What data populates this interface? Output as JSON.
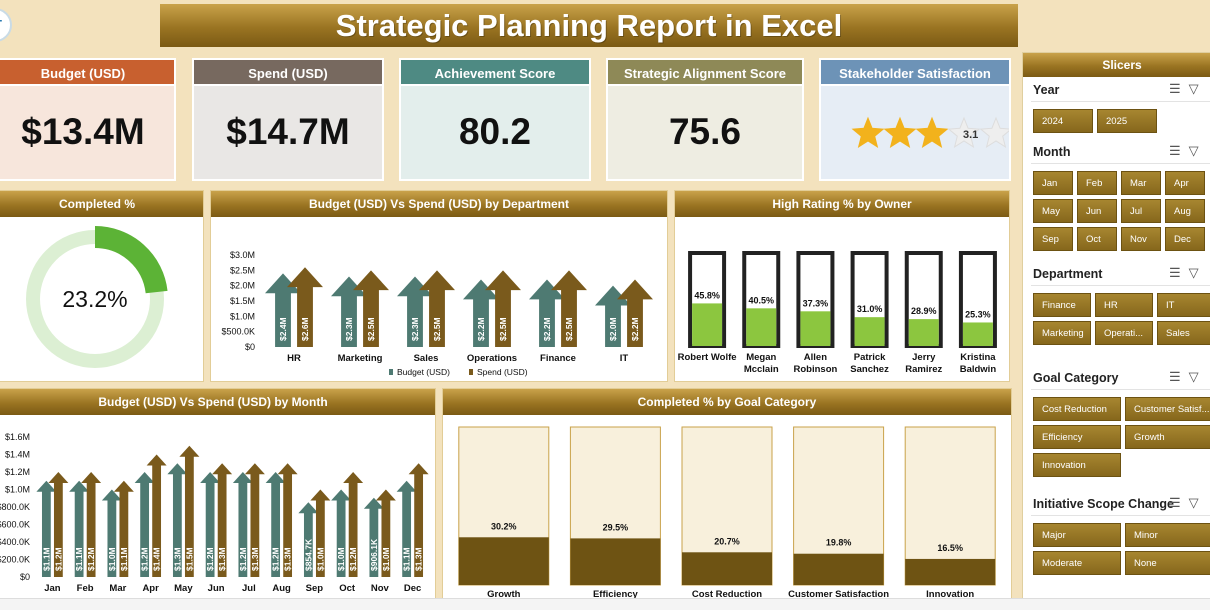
{
  "header": {
    "title": "Strategic Planning Report in Excel",
    "logo_text": "T"
  },
  "kpis": [
    {
      "label": "Budget (USD)",
      "value": "$13.4M",
      "head_color": "#c8602f",
      "body_color": "#f7e6dc"
    },
    {
      "label": "Spend (USD)",
      "value": "$14.7M",
      "head_color": "#77695f",
      "body_color": "#e9e7e5"
    },
    {
      "label": "Achievement Score",
      "value": "80.2",
      "head_color": "#4e8a83",
      "body_color": "#e3eeec"
    },
    {
      "label": "Strategic Alignment Score",
      "value": "75.6",
      "head_color": "#8e8957",
      "body_color": "#eeede2"
    },
    {
      "label": "Stakeholder Satisfaction",
      "value": "",
      "head_color": "#6d93b7",
      "body_color": "#e6edf5"
    }
  ],
  "stakeholder_rating": {
    "value": "3.1",
    "stars_filled": 3,
    "stars_total": 5,
    "star_color": "#f2b21c"
  },
  "completed_panel": {
    "title": "Completed %",
    "value_text": "23.2%",
    "fraction": 0.232
  },
  "chart_data": [
    {
      "type": "bar",
      "title": "Budget (USD) Vs Spend (USD) by Department",
      "categories": [
        "HR",
        "Marketing",
        "Sales",
        "Operations",
        "Finance",
        "IT"
      ],
      "series": [
        {
          "name": "Budget (USD)",
          "values": [
            2.4,
            2.3,
            2.3,
            2.2,
            2.2,
            2.0
          ],
          "labels": [
            "$2.4M",
            "$2.3M",
            "$2.3M",
            "$2.2M",
            "$2.2M",
            "$2.0M"
          ],
          "color": "#4e7a72"
        },
        {
          "name": "Spend (USD)",
          "values": [
            2.6,
            2.5,
            2.5,
            2.5,
            2.5,
            2.2
          ],
          "labels": [
            "$2.6M",
            "$2.5M",
            "$2.5M",
            "$2.5M",
            "$2.5M",
            "$2.2M"
          ],
          "color": "#7a5a1c"
        }
      ],
      "yticks": [
        "$0",
        "$500.0K",
        "$1.0M",
        "$1.5M",
        "$2.0M",
        "$2.5M",
        "$3.0M"
      ],
      "ylim": [
        0,
        3.0
      ],
      "legend": "bottom"
    },
    {
      "type": "bar",
      "title": "High Rating % by Owner",
      "categories": [
        "Robert Wolfe",
        "Megan Mcclain",
        "Allen Robinson",
        "Patrick Sanchez",
        "Jerry Ramirez",
        "Kristina Baldwin"
      ],
      "category_lines": [
        [
          "Robert Wolfe"
        ],
        [
          "Megan",
          "Mcclain"
        ],
        [
          "Allen",
          "Robinson"
        ],
        [
          "Patrick",
          "Sanchez"
        ],
        [
          "Jerry",
          "Ramirez"
        ],
        [
          "Kristina",
          "Baldwin"
        ]
      ],
      "values": [
        45.8,
        40.5,
        37.3,
        31.0,
        28.9,
        25.3
      ],
      "labels": [
        "45.8%",
        "40.5%",
        "37.3%",
        "31.0%",
        "28.9%",
        "25.3%"
      ],
      "ylim": [
        0,
        100
      ],
      "color": "#8cc63f"
    },
    {
      "type": "bar",
      "title": "Budget (USD) Vs Spend (USD) by Month",
      "categories": [
        "Jan",
        "Feb",
        "Mar",
        "Apr",
        "May",
        "Jun",
        "Jul",
        "Aug",
        "Sep",
        "Oct",
        "Nov",
        "Dec"
      ],
      "series": [
        {
          "name": "Budget (USD)",
          "values": [
            1.1,
            1.1,
            1.0,
            1.2,
            1.3,
            1.2,
            1.2,
            1.2,
            0.855,
            1.0,
            0.906,
            1.1
          ],
          "labels": [
            "$1.1M",
            "$1.1M",
            "$1.0M",
            "$1.2M",
            "$1.3M",
            "$1.2M",
            "$1.2M",
            "$1.2M",
            "$854.7K",
            "$1.0M",
            "$906.1K",
            "$1.1M"
          ],
          "color": "#4e7a72"
        },
        {
          "name": "Spend (USD)",
          "values": [
            1.2,
            1.2,
            1.1,
            1.4,
            1.5,
            1.3,
            1.3,
            1.3,
            1.0,
            1.2,
            1.0,
            1.3
          ],
          "labels": [
            "$1.2M",
            "$1.2M",
            "$1.1M",
            "$1.4M",
            "$1.5M",
            "$1.3M",
            "$1.3M",
            "$1.3M",
            "$1.0M",
            "$1.2M",
            "$1.0M",
            "$1.3M"
          ],
          "color": "#7a5a1c"
        }
      ],
      "yticks": [
        "$0",
        "$200.0K",
        "$400.0K",
        "$600.0K",
        "$800.0K",
        "$1.0M",
        "$1.2M",
        "$1.4M",
        "$1.6M"
      ],
      "ylim": [
        0,
        1.6
      ]
    },
    {
      "type": "bar",
      "title": "Completed % by Goal Category",
      "categories": [
        "Growth",
        "Efficiency",
        "Cost Reduction",
        "Customer Satisfaction",
        "Innovation"
      ],
      "values": [
        30.2,
        29.5,
        20.7,
        19.8,
        16.5
      ],
      "labels": [
        "30.2%",
        "29.5%",
        "20.7%",
        "19.8%",
        "16.5%"
      ],
      "ylim": [
        0,
        100
      ],
      "color": "#6e5313"
    }
  ],
  "slicers": {
    "title": "Slicers",
    "groups": [
      {
        "title": "Year",
        "items": [
          "2024",
          "2025"
        ]
      },
      {
        "title": "Month",
        "items": [
          "Jan",
          "Feb",
          "Mar",
          "Apr",
          "May",
          "Jun",
          "Jul",
          "Aug",
          "Sep",
          "Oct",
          "Nov",
          "Dec"
        ]
      },
      {
        "title": "Department",
        "items": [
          "Finance",
          "HR",
          "IT",
          "Marketing",
          "Operati...",
          "Sales"
        ]
      },
      {
        "title": "Goal Category",
        "items": [
          "Cost Reduction",
          "Customer Satisf...",
          "Efficiency",
          "Growth",
          "Innovation"
        ]
      },
      {
        "title": "Initiative Scope Change",
        "items": [
          "Major",
          "Minor",
          "Moderate",
          "None"
        ]
      }
    ]
  },
  "icons": {
    "multiselect": "multiselect-icon",
    "clear_filter": "clear-filter-icon"
  }
}
